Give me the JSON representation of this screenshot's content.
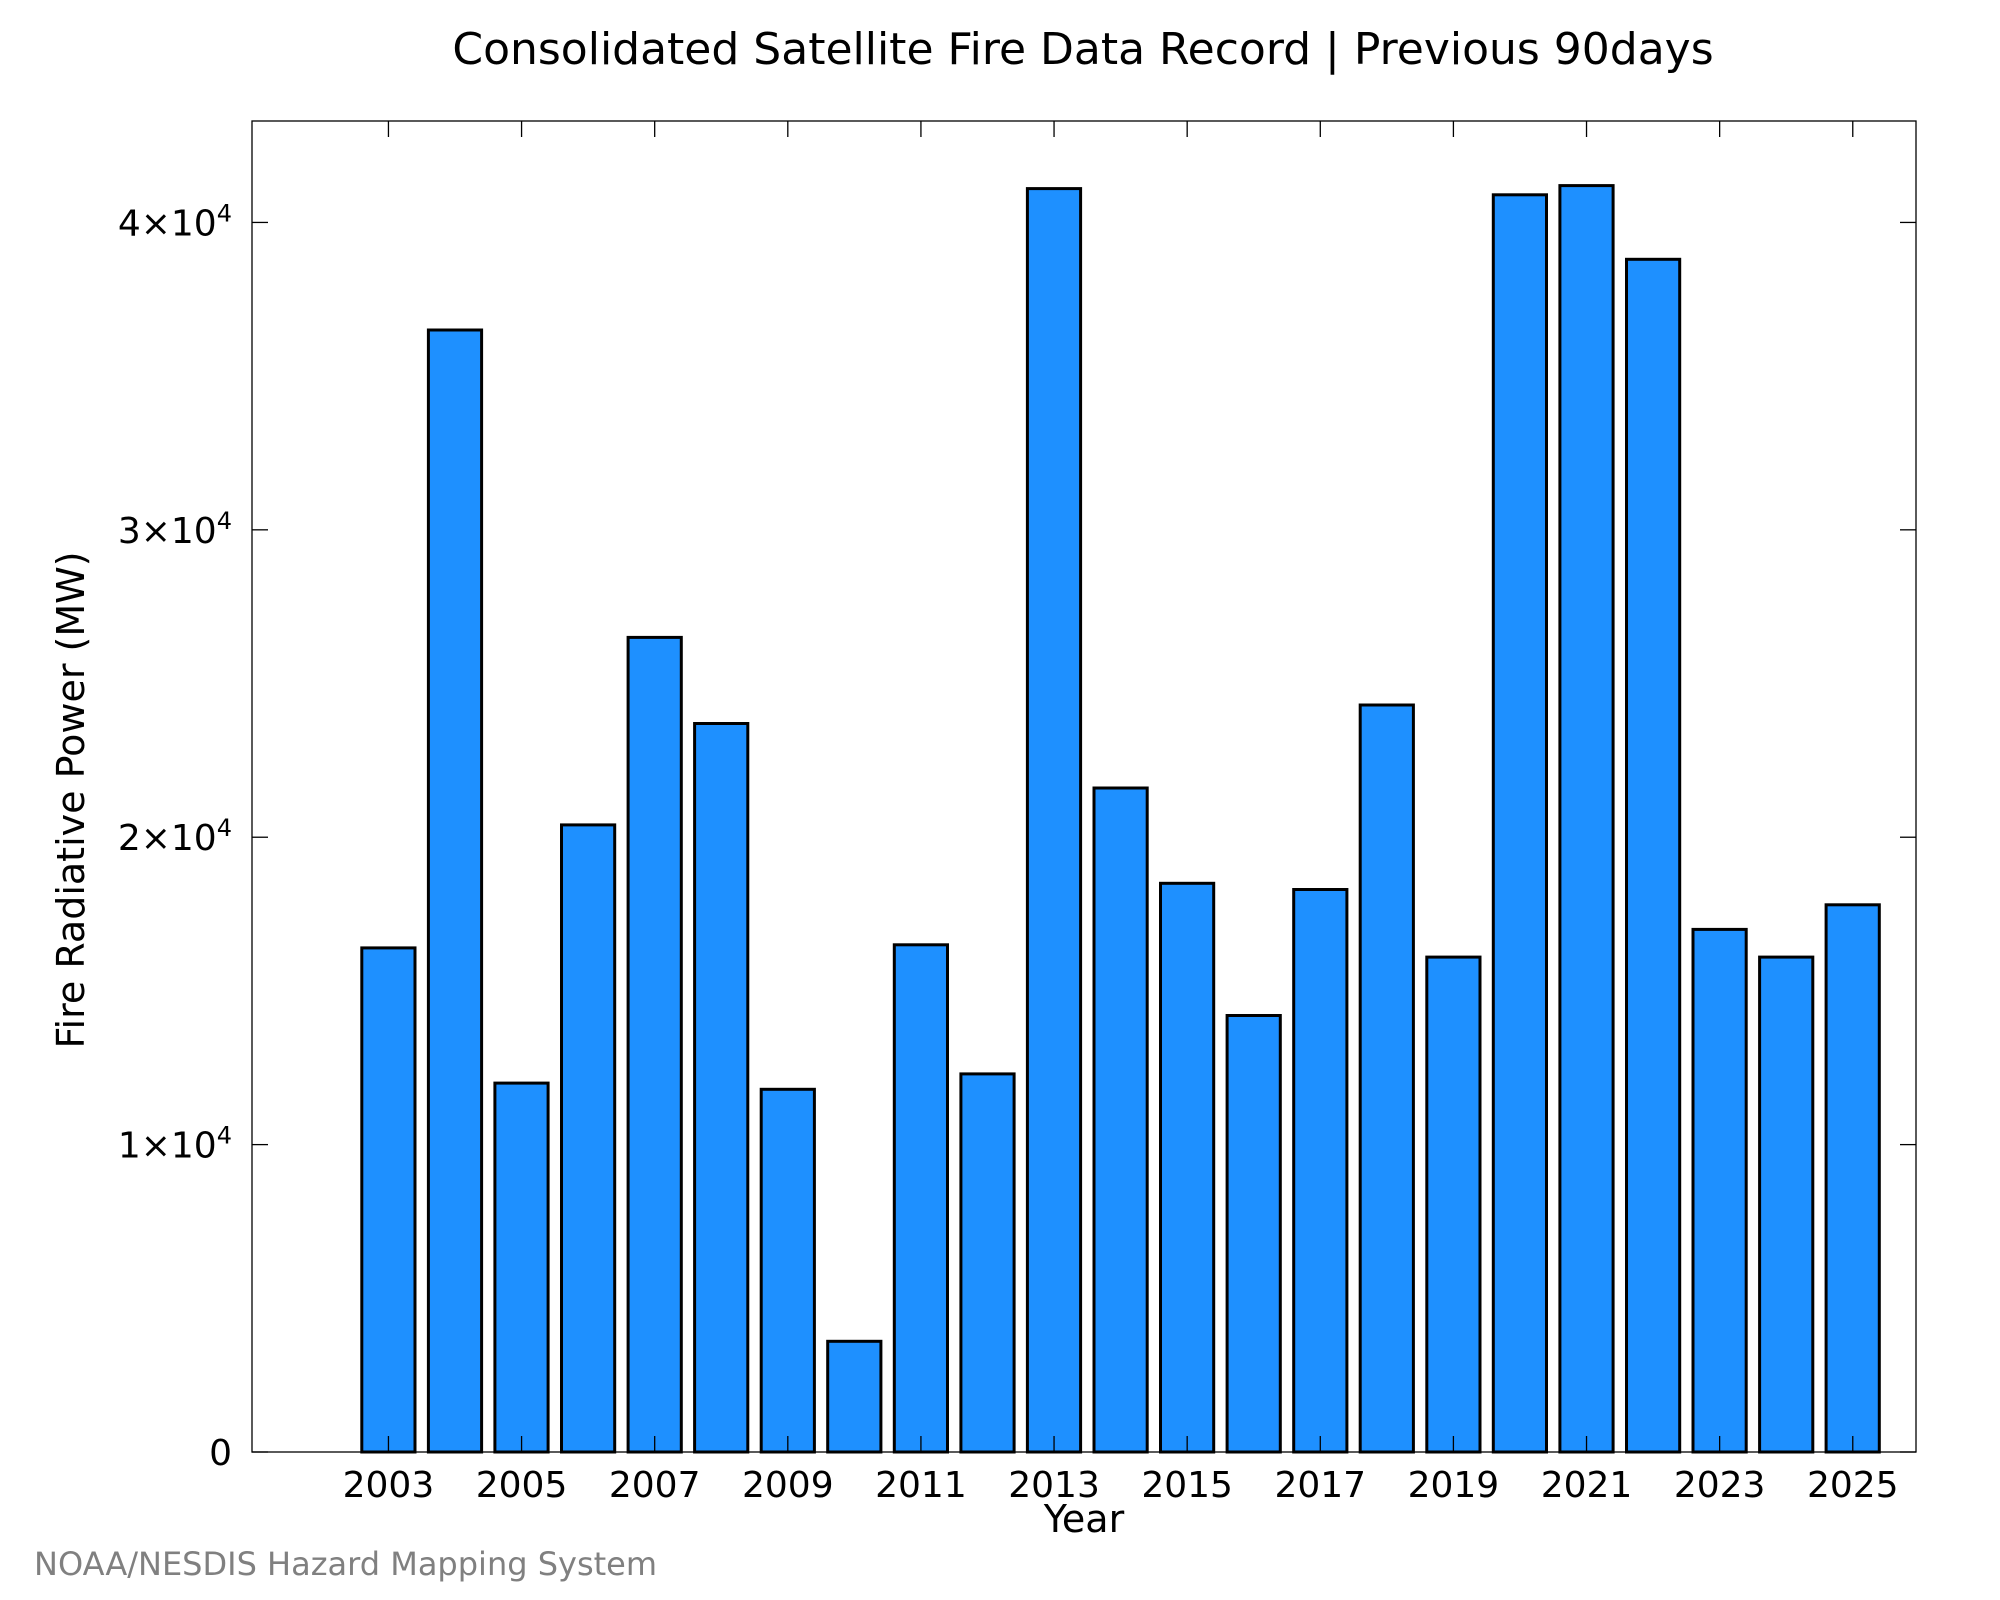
{
  "credit": "NOAA/NESDIS Hazard Mapping System",
  "colors": {
    "bar_fill": "#1e90ff",
    "bar_edge": "#000000",
    "credit_text": "#808080"
  },
  "chart_data": {
    "type": "bar",
    "title": "Consolidated Satellite Fire Data Record | Previous 90days",
    "xlabel": "Year",
    "ylabel": "Fire Radiative Power (MW)",
    "categories": [
      "2003",
      "2004",
      "2005",
      "2006",
      "2007",
      "2008",
      "2009",
      "2010",
      "2011",
      "2012",
      "2013",
      "2014",
      "2015",
      "2016",
      "2017",
      "2018",
      "2019",
      "2020",
      "2021",
      "2022",
      "2023",
      "2024",
      "2025"
    ],
    "values": [
      16400,
      36500,
      12000,
      20400,
      26500,
      23700,
      11800,
      3600,
      16500,
      12300,
      41100,
      21600,
      18500,
      14200,
      18300,
      24300,
      16100,
      40900,
      41200,
      38800,
      17000,
      16100,
      17800
    ],
    "x_tick_labels": [
      "2003",
      "2005",
      "2007",
      "2009",
      "2011",
      "2013",
      "2015",
      "2017",
      "2019",
      "2021",
      "2023",
      "2025"
    ],
    "y_ticks": [
      {
        "value": 0,
        "mantissa": "0",
        "exponent": ""
      },
      {
        "value": 10000,
        "mantissa": "1×10",
        "exponent": "4"
      },
      {
        "value": 20000,
        "mantissa": "2×10",
        "exponent": "4"
      },
      {
        "value": 30000,
        "mantissa": "3×10",
        "exponent": "4"
      },
      {
        "value": 40000,
        "mantissa": "4×10",
        "exponent": "4"
      }
    ],
    "ylim": [
      0,
      43300
    ],
    "xlim": [
      2000.95,
      2025.95
    ],
    "grid": false,
    "legend": "none"
  }
}
